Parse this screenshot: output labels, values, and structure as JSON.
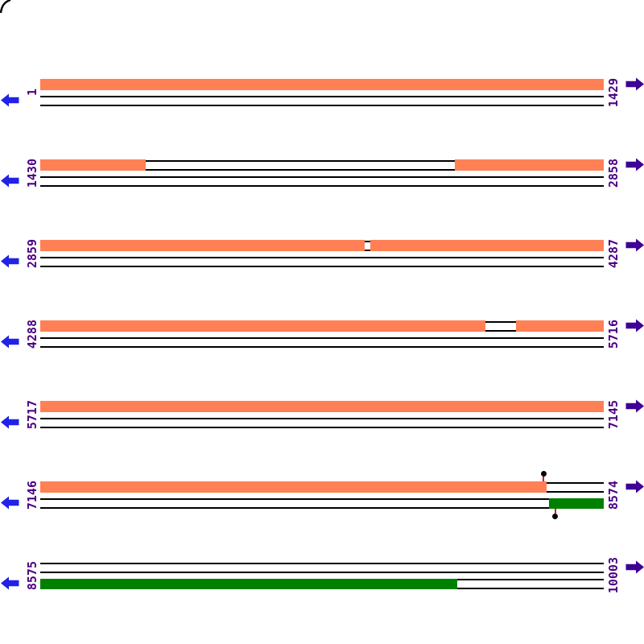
{
  "page": {
    "background": "#FFFFFF"
  },
  "figure": {
    "type": "linear-sequence-feature-map",
    "sequence_start": "1",
    "sequence_end": "10003",
    "colors": {
      "forward_feature": "#FF8055",
      "reverse_feature": "#008000",
      "frame_line": "#000000",
      "coordinate_label": "#4B0082",
      "left_arrow": "#2222E6",
      "right_arrow": "#3F0095",
      "marker_dot": "#000000",
      "marker_stem": "#EE0000"
    },
    "rows": [
      {
        "left_label": "1",
        "right_label": "1429",
        "forward_segments": [
          {
            "start_pct": 0,
            "end_pct": 100
          }
        ],
        "reverse_segments": [],
        "markers": []
      },
      {
        "left_label": "1430",
        "right_label": "2858",
        "forward_segments": [
          {
            "start_pct": 0,
            "end_pct": 18.7
          },
          {
            "start_pct": 73.6,
            "end_pct": 100
          }
        ],
        "reverse_segments": [],
        "markers": []
      },
      {
        "left_label": "2859",
        "right_label": "4287",
        "forward_segments": [
          {
            "start_pct": 0,
            "end_pct": 57.6
          },
          {
            "start_pct": 58.5,
            "end_pct": 100
          }
        ],
        "reverse_segments": [],
        "markers": []
      },
      {
        "left_label": "4288",
        "right_label": "5716",
        "forward_segments": [
          {
            "start_pct": 0,
            "end_pct": 79.0
          },
          {
            "start_pct": 84.4,
            "end_pct": 100
          }
        ],
        "reverse_segments": [],
        "markers": []
      },
      {
        "left_label": "5717",
        "right_label": "7145",
        "forward_segments": [
          {
            "start_pct": 0,
            "end_pct": 100
          }
        ],
        "reverse_segments": [],
        "markers": []
      },
      {
        "left_label": "7146",
        "right_label": "8574",
        "forward_segments": [
          {
            "start_pct": 0,
            "end_pct": 89.9
          }
        ],
        "reverse_segments": [
          {
            "start_pct": 90.3,
            "end_pct": 100
          }
        ],
        "markers": [
          {
            "pct": 89.3,
            "position": "above"
          },
          {
            "pct": 91.4,
            "position": "below"
          }
        ]
      },
      {
        "left_label": "8575",
        "right_label": "10003",
        "forward_segments": [],
        "reverse_segments": [
          {
            "start_pct": 0,
            "end_pct": 74.0
          }
        ],
        "markers": []
      }
    ]
  }
}
